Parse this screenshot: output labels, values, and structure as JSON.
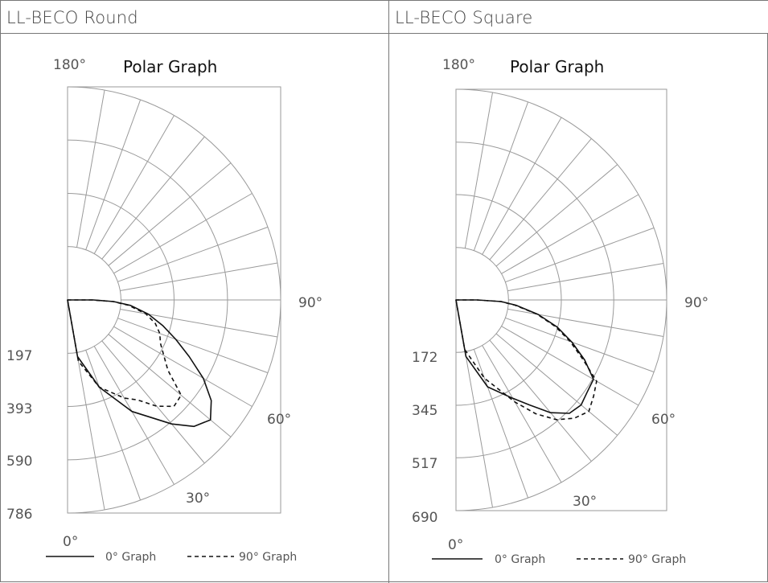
{
  "panels": [
    {
      "header": "LL-BECO Round",
      "title": "Polar Graph",
      "angle_labels": {
        "top": "180°",
        "right": "90°",
        "sixty": "60°",
        "thirty": "30°",
        "bottom": "0°"
      },
      "radial_labels": [
        "197",
        "393",
        "590",
        "786"
      ],
      "legend": {
        "solid": "0° Graph",
        "dashed": "90° Graph"
      }
    },
    {
      "header": "LL-BECO Square",
      "title": "Polar Graph",
      "angle_labels": {
        "top": "180°",
        "right": "90°",
        "sixty": "60°",
        "thirty": "30°",
        "bottom": "0°"
      },
      "radial_labels": [
        "172",
        "345",
        "517",
        "690"
      ],
      "legend": {
        "solid": "0° Graph",
        "dashed": "90° Graph"
      }
    }
  ],
  "chart_data": [
    {
      "type": "polar",
      "title": "Polar Graph",
      "angle_unit": "degrees",
      "radial_max": 786,
      "radial_ticks": [
        197,
        393,
        590,
        786
      ],
      "series": [
        {
          "name": "0° Graph",
          "style": "solid",
          "points": [
            [
              0,
              0
            ],
            [
              10,
              212
            ],
            [
              20,
              342
            ],
            [
              30,
              475
            ],
            [
              40,
              597
            ],
            [
              45,
              660
            ],
            [
              50,
              688
            ],
            [
              55,
              647
            ],
            [
              60,
              578
            ],
            [
              65,
              495
            ],
            [
              70,
              425
            ],
            [
              75,
              363
            ],
            [
              80,
              303
            ],
            [
              85,
              233
            ],
            [
              88,
              170
            ],
            [
              90,
              95
            ]
          ]
        },
        {
          "name": "90° Graph",
          "style": "dashed",
          "points": [
            [
              0,
              0
            ],
            [
              10,
              229
            ],
            [
              20,
              342
            ],
            [
              30,
              418
            ],
            [
              35,
              450
            ],
            [
              40,
              512
            ],
            [
              45,
              555
            ],
            [
              50,
              547
            ],
            [
              55,
              452
            ],
            [
              60,
              410
            ],
            [
              65,
              378
            ],
            [
              70,
              362
            ],
            [
              75,
              335
            ],
            [
              80,
              293
            ],
            [
              85,
              225
            ],
            [
              88,
              168
            ],
            [
              90,
              90
            ]
          ]
        }
      ]
    },
    {
      "type": "polar",
      "title": "Polar Graph",
      "angle_unit": "degrees",
      "radial_max": 690,
      "radial_ticks": [
        172,
        345,
        517,
        690
      ],
      "series": [
        {
          "name": "0° Graph",
          "style": "solid",
          "points": [
            [
              0,
              0
            ],
            [
              10,
              188
            ],
            [
              20,
              303
            ],
            [
              30,
              372
            ],
            [
              35,
              420
            ],
            [
              40,
              482
            ],
            [
              45,
              525
            ],
            [
              50,
              535
            ],
            [
              55,
              525
            ],
            [
              60,
              520
            ],
            [
              65,
              465
            ],
            [
              70,
              404
            ],
            [
              75,
              343
            ],
            [
              80,
              273
            ],
            [
              85,
              197
            ],
            [
              88,
              148
            ],
            [
              90,
              70
            ]
          ]
        },
        {
          "name": "90° Graph",
          "style": "dashed",
          "points": [
            [
              0,
              0
            ],
            [
              10,
              165
            ],
            [
              20,
              273
            ],
            [
              30,
              386
            ],
            [
              35,
              455
            ],
            [
              40,
              512
            ],
            [
              45,
              548
            ],
            [
              50,
              568
            ],
            [
              55,
              550
            ],
            [
              60,
              532
            ],
            [
              65,
              458
            ],
            [
              70,
              398
            ],
            [
              75,
              337
            ],
            [
              80,
              270
            ],
            [
              85,
              193
            ],
            [
              88,
              146
            ],
            [
              90,
              66
            ]
          ]
        }
      ]
    }
  ]
}
